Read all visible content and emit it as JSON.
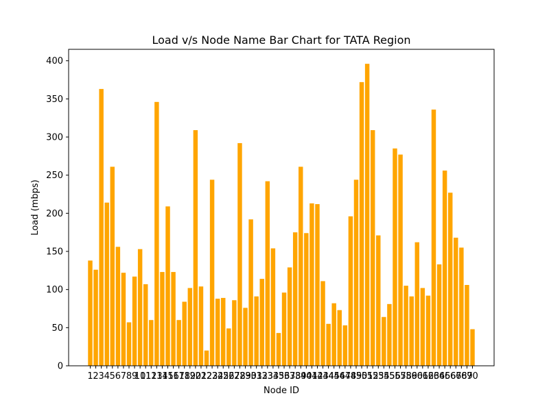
{
  "chart_data": {
    "type": "bar",
    "title": "Load v/s Node Name Bar Chart for TATA Region",
    "xlabel": "Node ID",
    "ylabel": "Load (mbps)",
    "ylim": [
      0,
      415
    ],
    "yticks": [
      0,
      50,
      100,
      150,
      200,
      250,
      300,
      350,
      400
    ],
    "grid": false,
    "bar_color": "#ffa500",
    "categories": [
      "1",
      "2",
      "3",
      "4",
      "5",
      "6",
      "7",
      "8",
      "9",
      "10",
      "11",
      "12",
      "13",
      "14",
      "15",
      "16",
      "17",
      "18",
      "19",
      "20",
      "21",
      "22",
      "23",
      "24",
      "25",
      "26",
      "27",
      "28",
      "29",
      "30",
      "31",
      "32",
      "33",
      "34",
      "35",
      "36",
      "37",
      "38",
      "39",
      "40",
      "41",
      "42",
      "43",
      "44",
      "45",
      "46",
      "47",
      "48",
      "49",
      "50",
      "51",
      "52",
      "53",
      "54",
      "55",
      "56",
      "57",
      "58",
      "59",
      "60",
      "61",
      "62",
      "63",
      "64",
      "65",
      "66",
      "67",
      "68",
      "69",
      "70"
    ],
    "values": [
      138,
      126,
      363,
      214,
      261,
      156,
      122,
      57,
      117,
      153,
      107,
      60,
      346,
      123,
      209,
      123,
      60,
      84,
      102,
      309,
      104,
      20,
      244,
      88,
      89,
      49,
      86,
      292,
      76,
      192,
      91,
      114,
      242,
      154,
      43,
      96,
      129,
      175,
      261,
      174,
      213,
      212,
      111,
      55,
      82,
      73,
      53,
      196,
      244,
      372,
      396,
      309,
      171,
      64,
      81,
      285,
      277,
      105,
      91,
      162,
      102,
      92,
      336,
      133,
      256,
      227,
      168,
      155,
      106,
      48
    ]
  }
}
